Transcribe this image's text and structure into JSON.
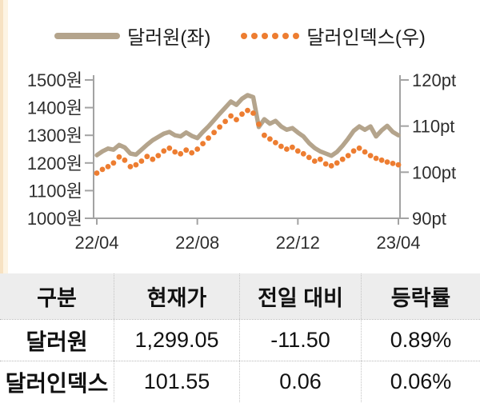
{
  "page": {
    "accent_strip_outer": "#f7e2c2",
    "accent_strip_inner": "#fdf4e3"
  },
  "chart_data": {
    "type": "line",
    "title": "",
    "x_tick_labels": [
      "22/04",
      "22/08",
      "22/12",
      "23/04"
    ],
    "left_axis": {
      "labels": [
        "1500원",
        "1400원",
        "1300원",
        "1200원",
        "1100원",
        "1000원"
      ],
      "min": 1000,
      "max": 1500,
      "unit": "원"
    },
    "right_axis": {
      "labels": [
        "120pt",
        "110pt",
        "100pt",
        "90pt"
      ],
      "min": 90,
      "max": 120,
      "unit": "pt"
    },
    "axis_color": "#a3a3a3",
    "label_color": "#2e2e2e",
    "legend_position": "top",
    "grid": false,
    "series": [
      {
        "name": "달러원(좌)",
        "axis": "left",
        "style": "thick-line",
        "color": "#b4a48c",
        "values": [
          1228,
          1242,
          1252,
          1248,
          1265,
          1256,
          1234,
          1230,
          1248,
          1266,
          1282,
          1294,
          1306,
          1312,
          1300,
          1296,
          1310,
          1298,
          1290,
          1312,
          1332,
          1355,
          1378,
          1400,
          1422,
          1410,
          1432,
          1445,
          1438,
          1330,
          1358,
          1342,
          1352,
          1332,
          1320,
          1326,
          1310,
          1296,
          1272,
          1254,
          1242,
          1234,
          1226,
          1240,
          1262,
          1288,
          1316,
          1332,
          1320,
          1332,
          1296,
          1318,
          1334,
          1312,
          1300
        ]
      },
      {
        "name": "달러인덱스(우)",
        "axis": "right",
        "style": "dots",
        "color": "#ed7d31",
        "values": [
          99.8,
          100.6,
          101.2,
          102.0,
          103.3,
          102.6,
          101.2,
          101.6,
          102.4,
          103.4,
          102.8,
          103.6,
          104.6,
          105.2,
          104.4,
          104.0,
          104.8,
          104.2,
          105.0,
          106.2,
          107.4,
          108.6,
          109.8,
          111.0,
          112.2,
          111.4,
          112.6,
          113.4,
          112.8,
          110.4,
          108.0,
          107.2,
          106.4,
          105.6,
          105.0,
          105.4,
          104.6,
          104.0,
          103.2,
          102.4,
          102.8,
          101.8,
          101.4,
          102.0,
          102.8,
          103.6,
          104.6,
          105.2,
          104.4,
          103.6,
          103.0,
          102.6,
          102.2,
          101.9,
          101.6
        ]
      }
    ]
  },
  "table": {
    "headers": [
      "구분",
      "현재가",
      "전일 대비",
      "등락률"
    ],
    "rows": [
      {
        "cells": [
          "달러원",
          "1,299.05",
          "-11.50",
          "0.89%"
        ]
      },
      {
        "cells": [
          "달러인덱스",
          "101.55",
          "0.06",
          "0.06%"
        ]
      }
    ]
  }
}
